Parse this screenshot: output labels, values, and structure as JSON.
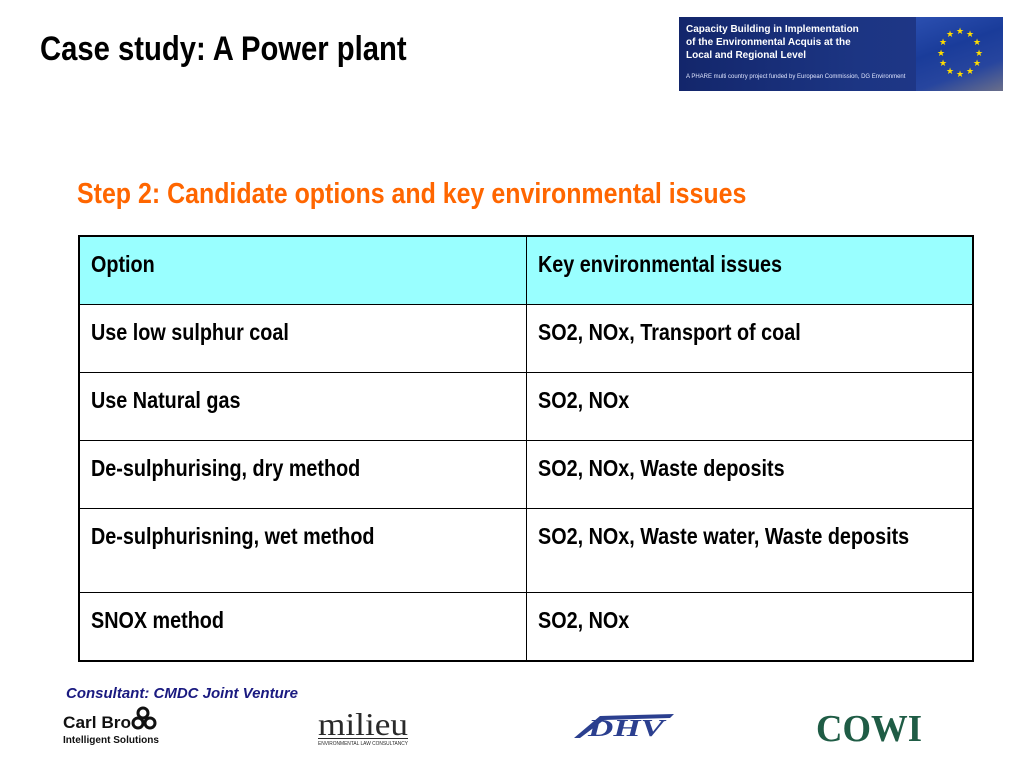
{
  "title": "Case study: A Power plant",
  "banner": {
    "line1": "Capacity Building in Implementation",
    "line2": "of the Environmental Acquis at the",
    "line3": "Local and Regional Level",
    "sub": "A PHARE multi country project funded by European Commission, DG Environment"
  },
  "subtitle": "Step 2: Candidate options and key environmental issues",
  "table": {
    "headers": [
      "Option",
      "Key environmental issues"
    ],
    "rows": [
      [
        "Use low sulphur coal",
        "SO2, NOx, Transport of coal"
      ],
      [
        "Use Natural gas",
        "SO2, NOx"
      ],
      [
        "De-sulphurising, dry method",
        "SO2, NOx, Waste deposits"
      ],
      [
        "De-sulphurisning, wet method",
        "SO2, NOx, Waste water, Waste deposits"
      ],
      [
        "SNOX method",
        "SO2, NOx"
      ]
    ]
  },
  "footer": {
    "consultant": "Consultant: CMDC Joint Venture"
  },
  "logos": {
    "carlbro": "Carl Bro",
    "carlbro_sub": "Intelligent Solutions",
    "milieu": "milieu",
    "milieu_sub": "ENVIRONMENTAL LAW CONSULTANCY",
    "dhv": "DHV",
    "cowi": "COWI"
  },
  "colors": {
    "subtitle": "#ff6600",
    "header_fill": "#99ffff",
    "footer_text": "#1a1a80",
    "banner_bg": "#13266b",
    "eu_star": "#ffdd00",
    "cowi": "#1f5c45"
  }
}
